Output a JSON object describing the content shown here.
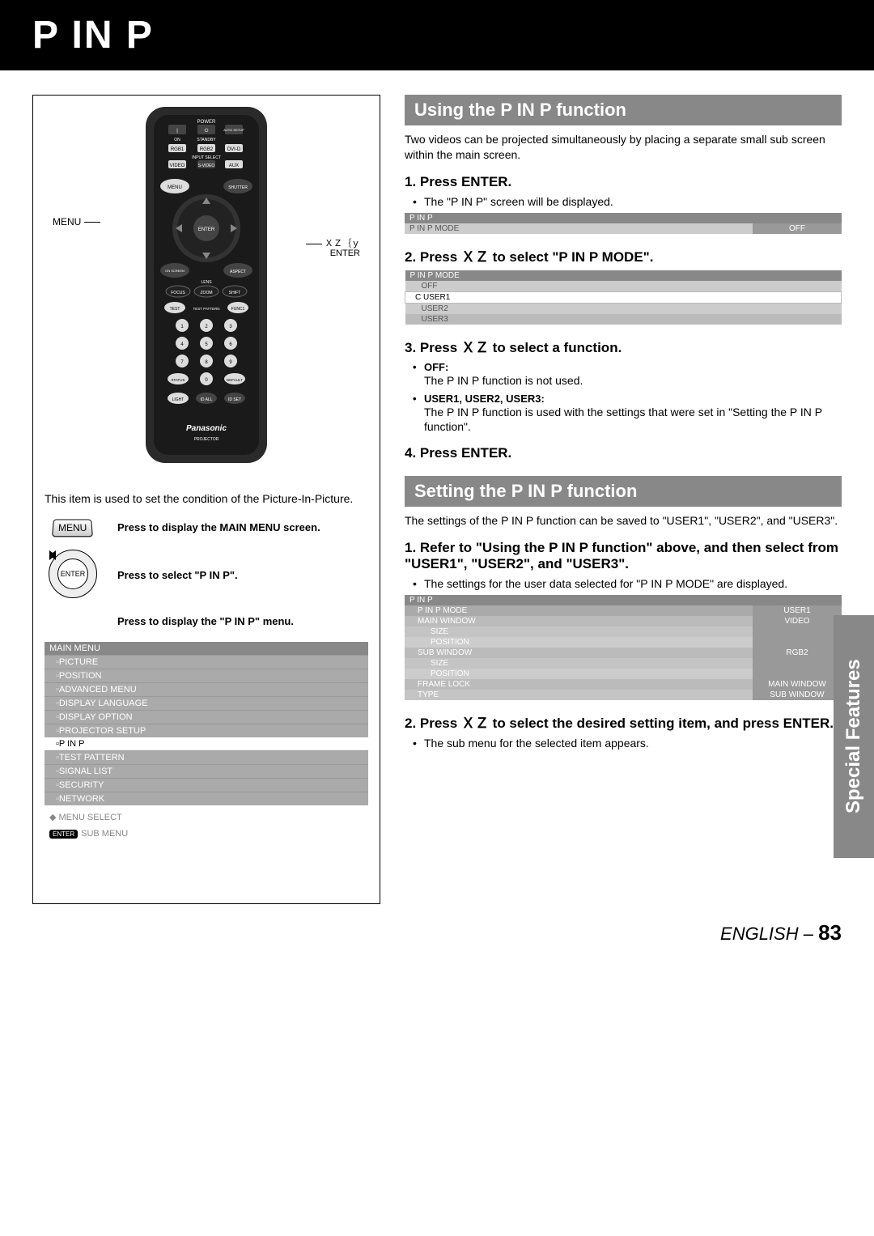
{
  "header": {
    "title": "P IN P"
  },
  "sidebar_tab": "Special Features",
  "footer": {
    "lang": "ENGLISH",
    "sep": " – ",
    "page": "83"
  },
  "remote_labels": {
    "menu": "MENU",
    "arrows": "ＸＺ｛ｙ",
    "enter": "ENTER"
  },
  "left": {
    "desc": "This item is used to set the condition of the Picture-In-Picture.",
    "rows": [
      {
        "icon_label": "MENU",
        "text": "Press to display the MAIN MENU screen."
      },
      {
        "icon_label": "ENTER",
        "text": "Press to select \"P IN P\"."
      },
      {
        "icon_label": "",
        "text": "Press to display the \"P IN P\" menu."
      }
    ],
    "menu_header": "MAIN MENU",
    "menu_items": [
      "PICTURE",
      "POSITION",
      "ADVANCED MENU",
      "DISPLAY LANGUAGE",
      "DISPLAY OPTION",
      "PROJECTOR SETUP",
      "P IN P",
      "TEST PATTERN",
      "SIGNAL LIST",
      "SECURITY",
      "NETWORK"
    ],
    "menu_selected_index": 6,
    "menu_foot1": "MENU SELECT",
    "menu_foot2_badge": "ENTER",
    "menu_foot2": "SUB MENU"
  },
  "right": {
    "sec1_title": "Using the P IN P function",
    "sec1_intro": "Two videos can be projected simultaneously by placing a separate small sub screen within the main screen.",
    "s1": "1. Press ENTER.",
    "s1b": "The \"P IN P\" screen will be displayed.",
    "osd1_h": "P IN P",
    "osd1_row_l": "P IN P MODE",
    "osd1_row_v": "OFF",
    "s2": "2. Press  ＸＺ  to select \"P IN P MODE\".",
    "osd2_h": "P IN P MODE",
    "osd2_rows": [
      "OFF",
      "USER1",
      "USER2",
      "USER3"
    ],
    "s3": "3. Press  ＸＺ  to select a function.",
    "s3_b1": "OFF:",
    "s3_b1t": "The P IN P function is not used.",
    "s3_b2": "USER1, USER2, USER3:",
    "s3_b2t": "The P IN P function is used with the settings that were set in \"Setting the P IN P function\".",
    "s4": "4. Press ENTER.",
    "sec2_title": "Setting the P IN P function",
    "sec2_intro": "The settings of the P IN P function can be saved to \"USER1\", \"USER2\", and \"USER3\".",
    "t1": "1. Refer to \"Using the P IN P function\" above, and then select from \"USER1\", \"USER2\", and \"USER3\".",
    "t1b": "The settings for the user data selected for \"P IN P MODE\" are displayed.",
    "osd3_h": "P IN P",
    "osd3_rows": [
      {
        "l": "P IN P MODE",
        "v": "USER1"
      },
      {
        "l": "MAIN WINDOW",
        "v": "VIDEO"
      },
      {
        "l": "SIZE",
        "v": ""
      },
      {
        "l": "POSITION",
        "v": ""
      },
      {
        "l": "SUB WINDOW",
        "v": "RGB2"
      },
      {
        "l": "SIZE",
        "v": ""
      },
      {
        "l": "POSITION",
        "v": ""
      },
      {
        "l": "FRAME LOCK",
        "v": "MAIN WINDOW"
      },
      {
        "l": "TYPE",
        "v": "SUB WINDOW"
      }
    ],
    "t2": "2. Press  ＸＺ  to select the desired setting item, and press ENTER.",
    "t2b": "The sub menu for the selected item appears."
  },
  "remote_buttons": {
    "power": "POWER",
    "on": "ON",
    "standby": "STANDBY",
    "auto": "AUTO SETUP",
    "rgb1": "RGB1",
    "rgb2": "RGB2",
    "dvid": "DVI-D",
    "input": "INPUT SELECT",
    "video": "VIDEO",
    "svideo": "S-VIDEO",
    "aux": "AUX",
    "menu": "MENU",
    "shutter": "SHUTTER",
    "enter": "ENTER",
    "onscreen": "ON SCREEN",
    "aspect": "ASPECT",
    "lens": "LENS",
    "focus": "FOCUS",
    "zoom": "ZOOM",
    "shift": "SHIFT",
    "test": "TEST",
    "testp": "TEST PATTERN",
    "func": "FUNC1",
    "status": "STATUS",
    "default": "DEFAULT",
    "light": "LIGHT",
    "idall": "ID ALL",
    "idset": "ID SET",
    "brand": "Panasonic",
    "sub": "PROJECTOR"
  }
}
